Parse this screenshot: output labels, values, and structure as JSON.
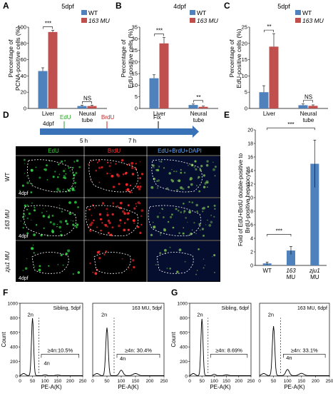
{
  "panels": {
    "A": {
      "letter": "A",
      "title": "5dpf",
      "ylabel1": "Percentage of",
      "ylabel2": "PCNA-positive cells (%)"
    },
    "B": {
      "letter": "B",
      "title": "4dpf",
      "ylabel1": "Percentage of",
      "ylabel2": "EdU-positive cells (%)"
    },
    "C": {
      "letter": "C",
      "title": "5dpf",
      "ylabel1": "Percentage of",
      "ylabel2": "EdU-positive cells (%)"
    },
    "D": {
      "letter": "D",
      "timeline": {
        "start": "4dpf",
        "edu": "EdU",
        "brdu": "BrdU",
        "fix": "Fix",
        "int1": "5 h",
        "int2": "7 h"
      },
      "col_headers": [
        "EdU",
        "BrdU",
        "EdU+BrdU+DAPI"
      ],
      "row_labels": [
        "WT",
        "163 MU",
        "zju1 MU"
      ],
      "stage": "4dpf"
    },
    "E": {
      "letter": "E",
      "ylabel1": "Fold of EdU+BrdU double-positive to",
      "ylabel2": "BrdU-positive hepatocytes"
    },
    "F": {
      "letter": "F"
    },
    "G": {
      "letter": "G"
    }
  },
  "legend": {
    "wt": "WT",
    "mu": "163 MU"
  },
  "colors": {
    "wt": "#4f81bd",
    "mu": "#c0504d",
    "bar": "#4f81bd"
  },
  "chart_data": [
    {
      "id": "A",
      "type": "bar",
      "title": "5dpf",
      "ylabel": "Percentage of PCNA-positive cells (%)",
      "categories": [
        "Liver",
        "Neural tube"
      ],
      "ylim": [
        0,
        100
      ],
      "yticks": [
        0,
        20,
        40,
        60,
        80,
        100
      ],
      "series": [
        {
          "name": "WT",
          "values": [
            46,
            3
          ],
          "err": [
            4,
            1
          ]
        },
        {
          "name": "163 MU",
          "values": [
            94,
            3
          ],
          "err": [
            2,
            1
          ]
        }
      ],
      "sig": [
        "***",
        "NS"
      ]
    },
    {
      "id": "B",
      "type": "bar",
      "title": "4dpf",
      "ylabel": "Percentage of EdU-positive cells (%)",
      "categories": [
        "Liver",
        "Neural tube"
      ],
      "ylim": [
        0,
        35
      ],
      "yticks": [
        0,
        5,
        10,
        15,
        20,
        25,
        30,
        35
      ],
      "series": [
        {
          "name": "WT",
          "values": [
            13,
            1.5
          ],
          "err": [
            1.5,
            0.4
          ]
        },
        {
          "name": "163 MU",
          "values": [
            28,
            0.7
          ],
          "err": [
            2.5,
            0.3
          ]
        }
      ],
      "sig": [
        "***",
        "**"
      ]
    },
    {
      "id": "C",
      "type": "bar",
      "title": "5dpf",
      "ylabel": "Percentage of EdU-positive cells (%)",
      "categories": [
        "Liver",
        "Neural tube"
      ],
      "ylim": [
        0,
        25
      ],
      "yticks": [
        0,
        5,
        10,
        15,
        20,
        25
      ],
      "series": [
        {
          "name": "WT",
          "values": [
            5,
            1
          ],
          "err": [
            2,
            0.4
          ]
        },
        {
          "name": "163 MU",
          "values": [
            19,
            0.8
          ],
          "err": [
            4,
            0.3
          ]
        }
      ],
      "sig": [
        "**",
        "NS"
      ]
    },
    {
      "id": "E",
      "type": "bar",
      "ylabel": "Fold of EdU+BrdU double-positive to BrdU-positive hepatocytes",
      "categories": [
        "WT",
        "163 MU",
        "zju1 MU"
      ],
      "ylim": [
        0,
        20
      ],
      "yticks": [
        0,
        2,
        4,
        6,
        8,
        10,
        12,
        14,
        16,
        18,
        20
      ],
      "values": [
        0.3,
        2.2,
        15
      ],
      "err": [
        0.2,
        0.6,
        3.5
      ],
      "sig": [
        "***",
        "***"
      ]
    },
    {
      "id": "F1",
      "type": "line",
      "title": "Sibling, 5dpf",
      "xlabel": "PE-A(K)",
      "ylabel": "Count",
      "ylim": [
        0,
        1000
      ],
      "yticks": [
        0,
        200,
        400,
        600,
        800,
        1000
      ],
      "xlim": [
        0,
        250
      ],
      "xticks": [
        0,
        50,
        100,
        150,
        200,
        250
      ],
      "labels": {
        "peak": "2n",
        "tet": "4n",
        "gate": "≥4n:10.5%"
      }
    },
    {
      "id": "F2",
      "type": "line",
      "title": "163 MU, 5dpf",
      "xlabel": "PE-A(K)",
      "ylim": [
        0,
        1000
      ],
      "xlim": [
        0,
        250
      ],
      "xticks": [
        0,
        50,
        100,
        150,
        200,
        250
      ],
      "labels": {
        "peak": "2n",
        "tet": "4n",
        "gate": "≥4n: 30.4%"
      }
    },
    {
      "id": "G1",
      "type": "line",
      "title": "Sibling, 6dpf",
      "xlabel": "PE-A(K)",
      "ylabel": "Count",
      "ylim": [
        0,
        1000
      ],
      "yticks": [
        0,
        200,
        400,
        600,
        800,
        1000
      ],
      "xlim": [
        0,
        250
      ],
      "xticks": [
        0,
        50,
        100,
        150,
        200,
        250
      ],
      "labels": {
        "peak": "2n",
        "gate": "≥4n: 8.69%"
      }
    },
    {
      "id": "G2",
      "type": "line",
      "title": "163 MU, 6dpf",
      "xlabel": "PE-A(K)",
      "ylim": [
        0,
        1000
      ],
      "xlim": [
        0,
        250
      ],
      "xticks": [
        0,
        50,
        100,
        150,
        200,
        250
      ],
      "labels": {
        "peak": "2n",
        "tet": "4n",
        "gate": "≥4n: 33.1%"
      }
    }
  ]
}
